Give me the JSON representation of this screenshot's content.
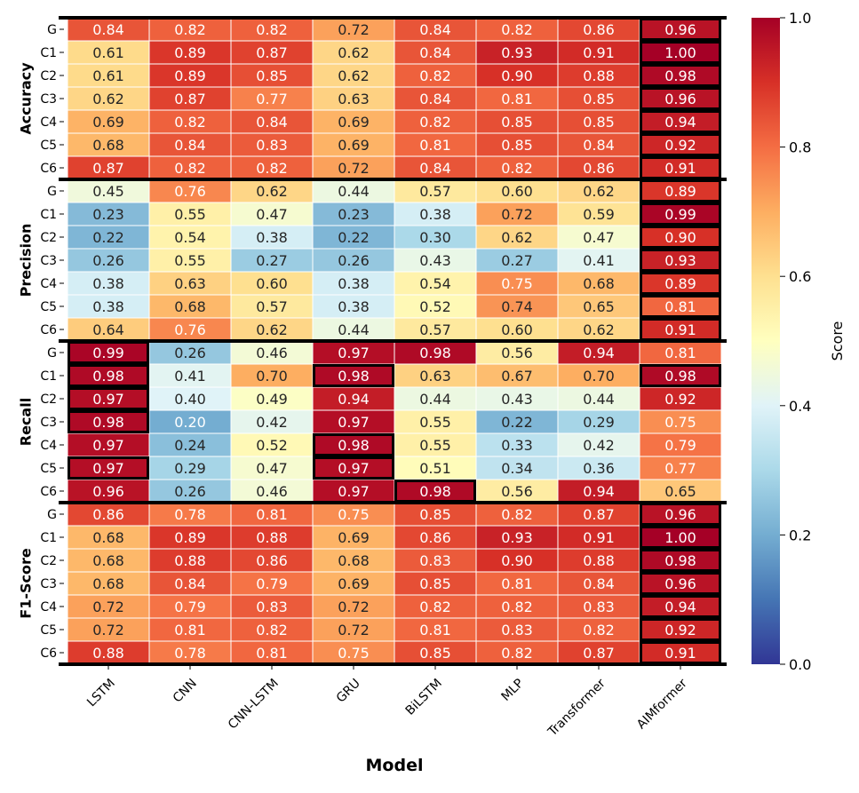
{
  "chart_data": {
    "type": "heatmap",
    "xlabel": "Model",
    "colorbar_label": "Score",
    "colormap": "RdYlBu_r",
    "vlim": [
      0,
      1
    ],
    "colorbar_ticks": [
      "0.0",
      "0.2",
      "0.4",
      "0.6",
      "0.8",
      "1.0"
    ],
    "columns": [
      "LSTM",
      "CNN",
      "CNN-LSTM",
      "GRU",
      "BiLSTM",
      "MLP",
      "Transformer",
      "AIMformer"
    ],
    "row_labels": [
      "G",
      "C1",
      "C2",
      "C3",
      "C4",
      "C5",
      "C6"
    ],
    "groups": [
      {
        "name": "Accuracy",
        "values": [
          [
            0.84,
            0.82,
            0.82,
            0.72,
            0.84,
            0.82,
            0.86,
            0.96
          ],
          [
            0.61,
            0.89,
            0.87,
            0.62,
            0.84,
            0.93,
            0.91,
            1.0
          ],
          [
            0.61,
            0.89,
            0.85,
            0.62,
            0.82,
            0.9,
            0.88,
            0.98
          ],
          [
            0.62,
            0.87,
            0.77,
            0.63,
            0.84,
            0.81,
            0.85,
            0.96
          ],
          [
            0.69,
            0.82,
            0.84,
            0.69,
            0.82,
            0.85,
            0.85,
            0.94
          ],
          [
            0.68,
            0.84,
            0.83,
            0.69,
            0.81,
            0.85,
            0.84,
            0.92
          ],
          [
            0.87,
            0.82,
            0.82,
            0.72,
            0.84,
            0.82,
            0.86,
            0.91
          ]
        ]
      },
      {
        "name": "Precision",
        "values": [
          [
            0.45,
            0.76,
            0.62,
            0.44,
            0.57,
            0.6,
            0.62,
            0.89
          ],
          [
            0.23,
            0.55,
            0.47,
            0.23,
            0.38,
            0.72,
            0.59,
            0.99
          ],
          [
            0.22,
            0.54,
            0.38,
            0.22,
            0.3,
            0.62,
            0.47,
            0.9
          ],
          [
            0.26,
            0.55,
            0.27,
            0.26,
            0.43,
            0.27,
            0.41,
            0.93
          ],
          [
            0.38,
            0.63,
            0.6,
            0.38,
            0.54,
            0.75,
            0.68,
            0.89
          ],
          [
            0.38,
            0.68,
            0.57,
            0.38,
            0.52,
            0.74,
            0.65,
            0.81
          ],
          [
            0.64,
            0.76,
            0.62,
            0.44,
            0.57,
            0.6,
            0.62,
            0.91
          ]
        ]
      },
      {
        "name": "Recall",
        "values": [
          [
            0.99,
            0.26,
            0.46,
            0.97,
            0.98,
            0.56,
            0.94,
            0.81
          ],
          [
            0.98,
            0.41,
            0.7,
            0.98,
            0.63,
            0.67,
            0.7,
            0.98
          ],
          [
            0.97,
            0.4,
            0.49,
            0.94,
            0.44,
            0.43,
            0.44,
            0.92
          ],
          [
            0.98,
            0.2,
            0.42,
            0.97,
            0.55,
            0.22,
            0.29,
            0.75
          ],
          [
            0.97,
            0.24,
            0.52,
            0.98,
            0.55,
            0.33,
            0.42,
            0.79
          ],
          [
            0.97,
            0.29,
            0.47,
            0.97,
            0.51,
            0.34,
            0.36,
            0.77
          ],
          [
            0.96,
            0.26,
            0.46,
            0.97,
            0.98,
            0.56,
            0.94,
            0.65
          ]
        ]
      },
      {
        "name": "F1-Score",
        "values": [
          [
            0.86,
            0.78,
            0.81,
            0.75,
            0.85,
            0.82,
            0.87,
            0.96
          ],
          [
            0.68,
            0.89,
            0.88,
            0.69,
            0.86,
            0.93,
            0.91,
            1.0
          ],
          [
            0.68,
            0.88,
            0.86,
            0.68,
            0.83,
            0.9,
            0.88,
            0.98
          ],
          [
            0.68,
            0.84,
            0.79,
            0.69,
            0.85,
            0.81,
            0.84,
            0.96
          ],
          [
            0.72,
            0.79,
            0.83,
            0.72,
            0.82,
            0.82,
            0.83,
            0.94
          ],
          [
            0.72,
            0.81,
            0.82,
            0.72,
            0.81,
            0.83,
            0.82,
            0.92
          ],
          [
            0.88,
            0.78,
            0.81,
            0.75,
            0.85,
            0.82,
            0.87,
            0.91
          ]
        ]
      }
    ],
    "highlighted_max_cells": "per row maximum outlined in black"
  }
}
